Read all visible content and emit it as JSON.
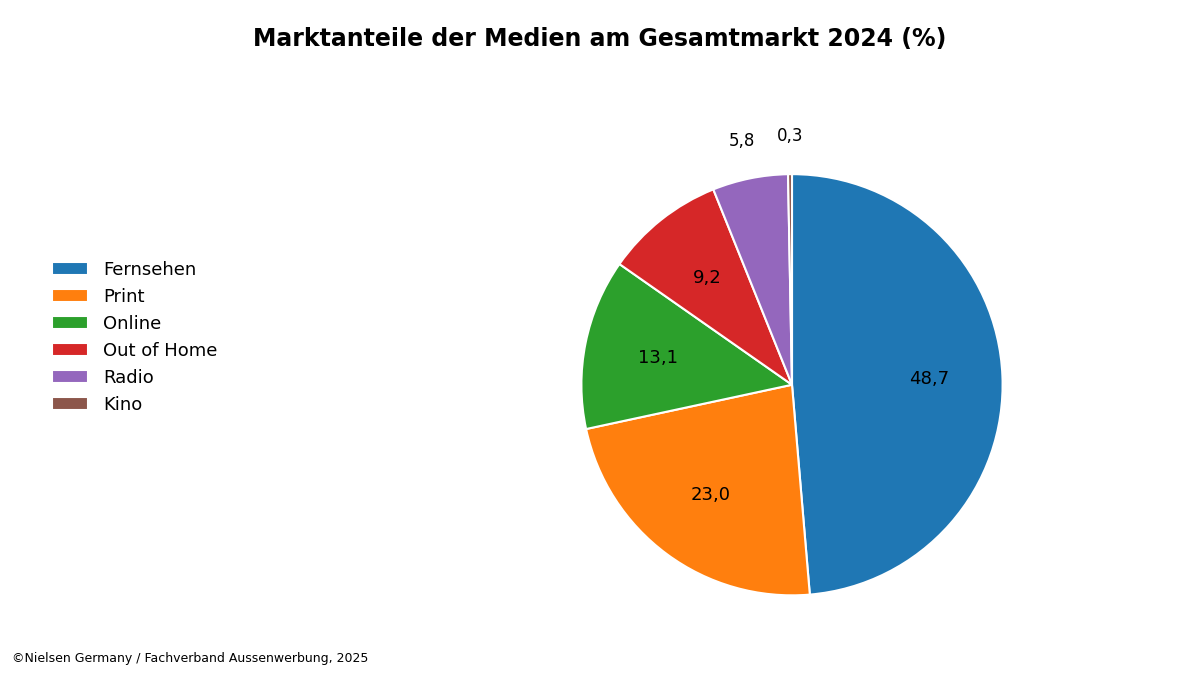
{
  "chart_data": {
    "type": "pie",
    "title": "Marktanteile der Medien am Gesamtmarkt 2024 (%)",
    "categories": [
      "Fernsehen",
      "Print",
      "Online",
      "Out of Home",
      "Radio",
      "Kino"
    ],
    "values": [
      48.7,
      23.0,
      13.1,
      9.2,
      5.8,
      0.3
    ],
    "value_labels": [
      "48,7",
      "23,0",
      "13,1",
      "9,2",
      "5,8",
      "0,3"
    ],
    "data_labels": true,
    "legend": "center left",
    "annotations": [
      "©Nielsen Germany / Fachverband Aussenwerbung, 2025"
    ]
  }
}
